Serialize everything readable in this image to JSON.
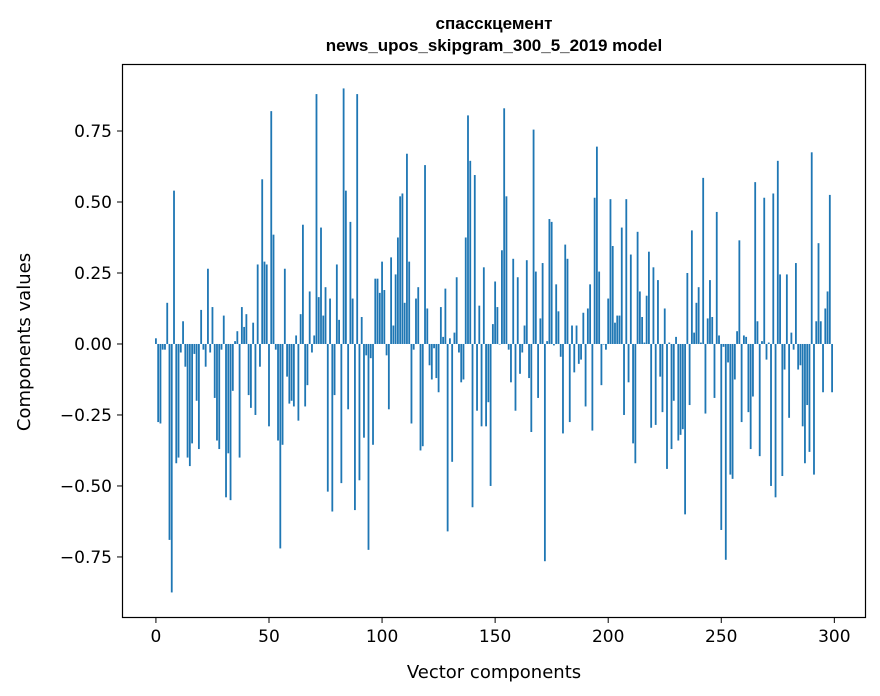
{
  "chart_data": {
    "type": "bar",
    "title_line1": "спасскцемент",
    "title_line2": "news_upos_skipgram_300_5_2019 model",
    "xlabel": "Vector components",
    "ylabel": "Components values",
    "xlim": [
      -15,
      314
    ],
    "ylim": [
      -0.965,
      0.986
    ],
    "xticks": [
      0,
      50,
      100,
      150,
      200,
      250,
      300
    ],
    "xtick_labels": [
      "0",
      "50",
      "100",
      "150",
      "200",
      "250",
      "300"
    ],
    "yticks": [
      -0.75,
      -0.5,
      -0.25,
      0,
      0.25,
      0.5,
      0.75
    ],
    "ytick_labels": [
      "−0.75",
      "−0.50",
      "−0.25",
      "0.00",
      "0.25",
      "0.50",
      "0.75"
    ],
    "grid": false,
    "color": "#1f77b4",
    "values": [
      0.02,
      -0.275,
      -0.28,
      -0.02,
      -0.02,
      0.145,
      -0.69,
      -0.875,
      0.54,
      -0.42,
      -0.4,
      -0.03,
      0.08,
      -0.08,
      -0.4,
      -0.43,
      -0.35,
      -0.035,
      -0.2,
      -0.37,
      0.12,
      -0.02,
      -0.08,
      0.265,
      -0.03,
      0.13,
      -0.19,
      -0.34,
      -0.37,
      -0.02,
      0.1,
      -0.54,
      -0.385,
      -0.55,
      -0.165,
      0.01,
      0.045,
      -0.4,
      0.13,
      0.06,
      0.105,
      -0.18,
      -0.225,
      0.075,
      -0.25,
      0.28,
      -0.08,
      0.58,
      0.29,
      0.28,
      -0.29,
      0.82,
      0.385,
      -0.02,
      -0.34,
      -0.72,
      -0.355,
      0.265,
      -0.115,
      -0.21,
      -0.2,
      -0.22,
      0.03,
      -0.27,
      0.105,
      0.42,
      -0.22,
      -0.145,
      0.185,
      -0.03,
      0.03,
      0.88,
      0.165,
      0.41,
      0.1,
      0.2,
      -0.52,
      0.16,
      -0.59,
      -0.18,
      0.28,
      0.085,
      -0.49,
      0.9,
      0.54,
      -0.23,
      0.43,
      0.16,
      -0.585,
      0.88,
      -0.48,
      0.095,
      -0.33,
      -0.04,
      -0.725,
      -0.05,
      -0.355,
      0.23,
      0.23,
      0.18,
      0.29,
      0.19,
      -0.04,
      -0.23,
      0.305,
      0.065,
      0.245,
      0.375,
      0.52,
      0.53,
      0.145,
      0.67,
      0.29,
      -0.28,
      -0.02,
      0.16,
      0.2,
      -0.375,
      -0.36,
      0.63,
      0.125,
      -0.075,
      -0.125,
      -0.015,
      -0.12,
      -0.17,
      0.13,
      0.025,
      0.195,
      -0.66,
      0.02,
      -0.415,
      0.04,
      0.235,
      -0.03,
      -0.135,
      -0.125,
      0.375,
      0.805,
      0.645,
      -0.575,
      0.595,
      -0.235,
      0.135,
      -0.29,
      0.27,
      -0.29,
      -0.205,
      -0.5,
      0.07,
      0.22,
      0.13,
      0.0,
      0.33,
      0.83,
      0.52,
      -0.02,
      -0.135,
      0.3,
      -0.235,
      0.235,
      -0.105,
      -0.03,
      0.065,
      0.295,
      -0.12,
      -0.31,
      0.755,
      0.255,
      -0.19,
      0.09,
      0.285,
      -0.765,
      0.01,
      0.44,
      0.43,
      -0.005,
      0.21,
      0.115,
      -0.045,
      -0.315,
      0.35,
      0.3,
      -0.275,
      0.065,
      -0.1,
      0.065,
      -0.07,
      -0.055,
      0.11,
      -0.22,
      0.125,
      0.21,
      -0.305,
      0.515,
      0.695,
      0.255,
      -0.145,
      0.0,
      -0.02,
      0.16,
      0.51,
      0.345,
      0.075,
      0.1,
      0.1,
      0.41,
      -0.25,
      0.51,
      -0.135,
      0.315,
      -0.35,
      -0.42,
      0.395,
      0.185,
      0.095,
      0.005,
      0.17,
      0.325,
      -0.295,
      0.27,
      -0.285,
      0.225,
      -0.115,
      -0.24,
      0.125,
      -0.44,
      0.005,
      -0.37,
      -0.2,
      0.025,
      -0.34,
      -0.32,
      -0.3,
      -0.6,
      0.25,
      -0.215,
      0.4,
      0.04,
      0.145,
      0.2,
      0.005,
      0.585,
      -0.245,
      0.09,
      0.225,
      0.095,
      -0.19,
      0.465,
      0.03,
      -0.655,
      -0.01,
      -0.76,
      -0.065,
      -0.46,
      -0.475,
      -0.125,
      0.045,
      0.365,
      -0.275,
      0.03,
      0.025,
      -0.24,
      -0.37,
      -0.185,
      0.57,
      0.08,
      -0.395,
      0.01,
      0.515,
      -0.055,
      0.005,
      -0.5,
      0.53,
      -0.54,
      0.645,
      0.245,
      -0.465,
      -0.09,
      0.245,
      -0.26,
      0.04,
      -0.02,
      0.285,
      -0.09,
      -0.075,
      -0.29,
      -0.42,
      -0.215,
      -0.38,
      0.675,
      -0.46,
      0.08,
      0.355,
      0.08,
      -0.17,
      0.125,
      0.185,
      0.525,
      -0.17
    ]
  }
}
